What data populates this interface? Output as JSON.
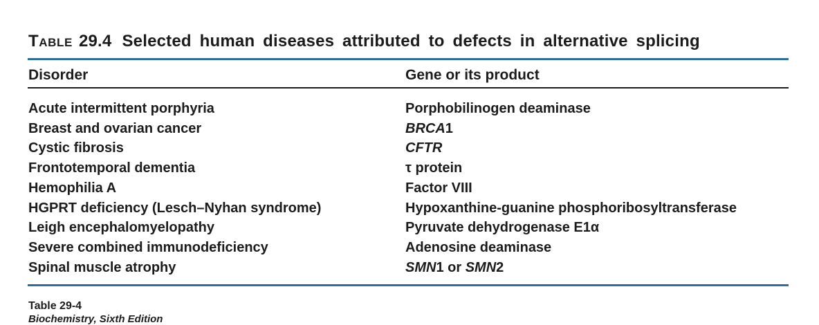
{
  "title": {
    "label": "Table",
    "number": "29.4",
    "text": "Selected human diseases attributed to defects in alternative splicing"
  },
  "colors": {
    "rule_blue": "#2d6e9e",
    "rule_dark": "#1a1a1a",
    "text": "#1b1b1b",
    "background": "#ffffff"
  },
  "table": {
    "columns": [
      "Disorder",
      "Gene or its product"
    ],
    "rows": [
      {
        "disorder": "Acute intermittent porphyria",
        "gene": [
          {
            "text": "Porphobilinogen deaminase"
          }
        ]
      },
      {
        "disorder": "Breast and ovarian cancer",
        "gene": [
          {
            "text": "BRCA",
            "italic": true
          },
          {
            "text": "1"
          }
        ]
      },
      {
        "disorder": "Cystic fibrosis",
        "gene": [
          {
            "text": "CFTR",
            "italic": true
          }
        ]
      },
      {
        "disorder": "Frontotemporal dementia",
        "gene": [
          {
            "text": "τ protein"
          }
        ]
      },
      {
        "disorder": "Hemophilia A",
        "gene": [
          {
            "text": "Factor VIII"
          }
        ]
      },
      {
        "disorder": "HGPRT deficiency (Lesch–Nyhan syndrome)",
        "gene": [
          {
            "text": "Hypoxanthine-guanine phosphoribosyltransferase"
          }
        ]
      },
      {
        "disorder": "Leigh encephalomyelopathy",
        "gene": [
          {
            "text": "Pyruvate dehydrogenase E1α"
          }
        ]
      },
      {
        "disorder": "Severe combined immunodeficiency",
        "gene": [
          {
            "text": "Adenosine deaminase"
          }
        ]
      },
      {
        "disorder": "Spinal muscle atrophy",
        "gene": [
          {
            "text": "SMN",
            "italic": true
          },
          {
            "text": "1 or "
          },
          {
            "text": "SMN",
            "italic": true
          },
          {
            "text": "2"
          }
        ]
      }
    ]
  },
  "footer": {
    "line1": "Table 29-4",
    "line2": "Biochemistry, Sixth Edition"
  }
}
